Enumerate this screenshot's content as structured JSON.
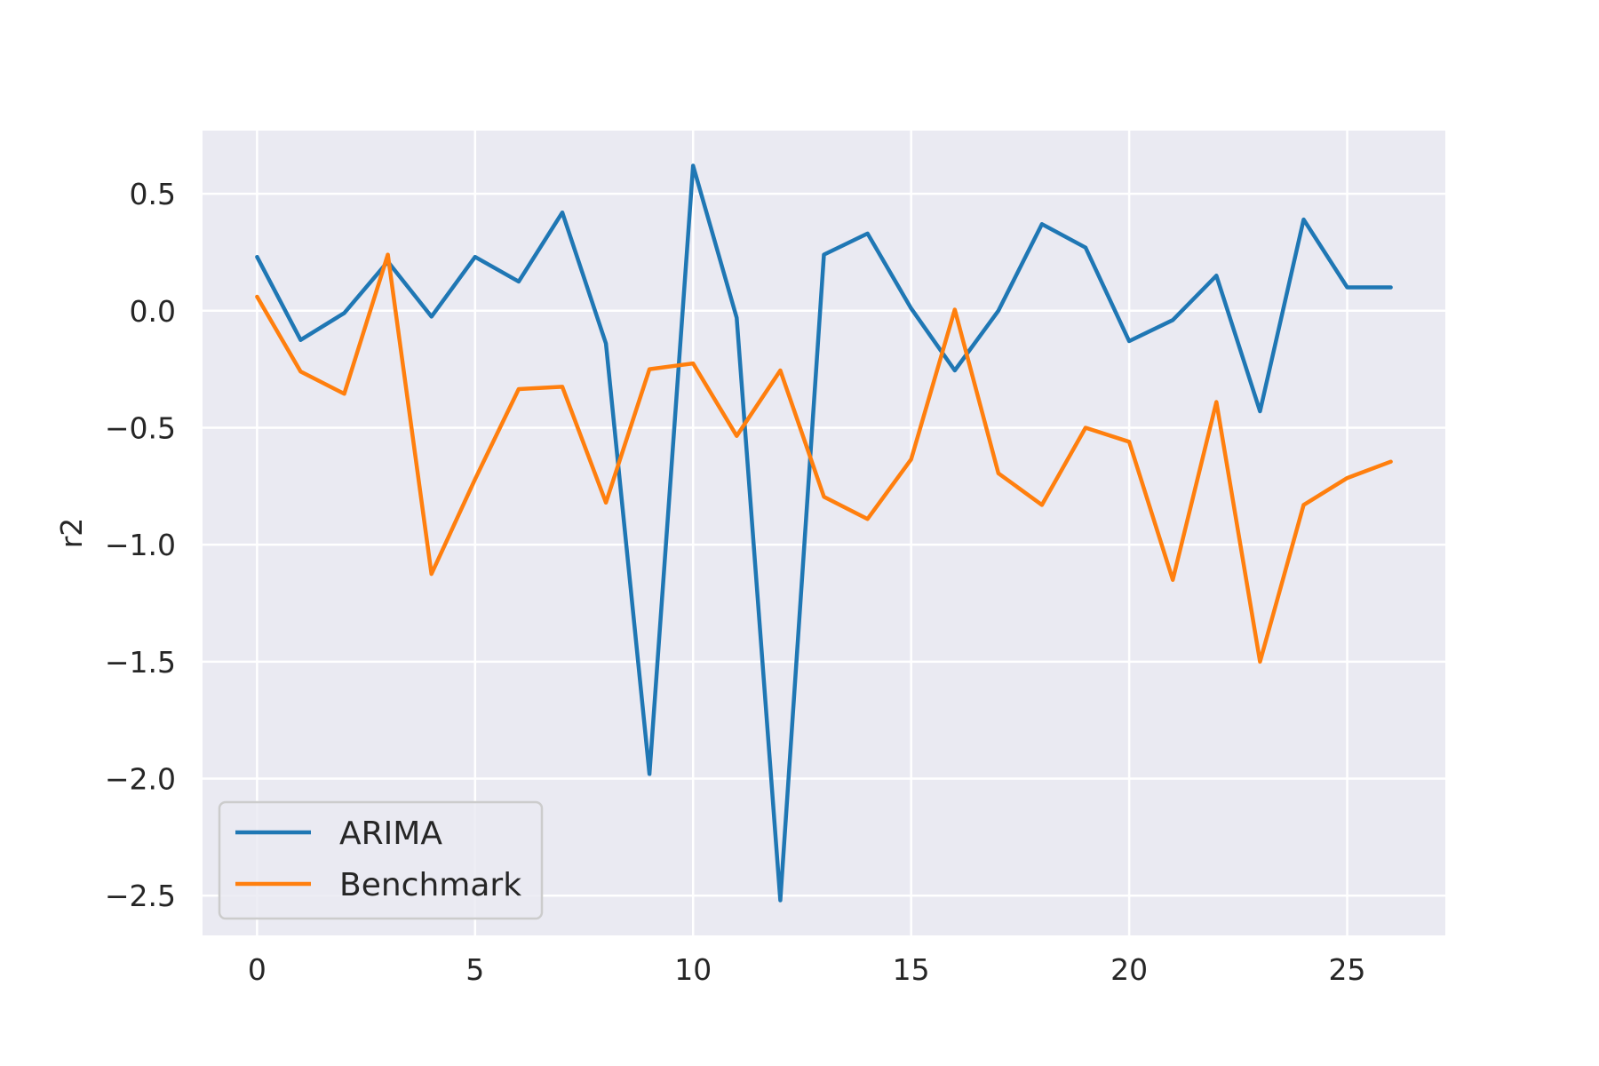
{
  "chart_data": {
    "type": "line",
    "title": "",
    "xlabel": "",
    "ylabel": "r2",
    "xlim": [
      -1.25,
      27.25
    ],
    "ylim": [
      -2.67,
      0.77
    ],
    "xticks": [
      0,
      5,
      10,
      15,
      20,
      25
    ],
    "xtick_labels": [
      "0",
      "5",
      "10",
      "15",
      "20",
      "25"
    ],
    "yticks": [
      0.5,
      0.0,
      -0.5,
      -1.0,
      -1.5,
      -2.0,
      -2.5
    ],
    "ytick_labels": [
      "0.5",
      "0.0",
      "−0.5",
      "−1.0",
      "−1.5",
      "−2.0",
      "−2.5"
    ],
    "grid": true,
    "legend_position": "lower-left",
    "x": [
      0,
      1,
      2,
      3,
      4,
      5,
      6,
      7,
      8,
      9,
      10,
      11,
      12,
      13,
      14,
      15,
      16,
      17,
      18,
      19,
      20,
      21,
      22,
      23,
      24,
      25,
      26
    ],
    "series": [
      {
        "name": "ARIMA",
        "color": "#1f77b4",
        "values": [
          0.23,
          -0.125,
          -0.01,
          0.21,
          -0.025,
          0.23,
          0.125,
          0.42,
          -0.14,
          -1.98,
          0.62,
          -0.03,
          -2.52,
          0.24,
          0.33,
          0.01,
          -0.255,
          0.0,
          0.37,
          0.27,
          -0.13,
          -0.04,
          0.15,
          -0.43,
          0.39,
          0.1,
          0.1
        ]
      },
      {
        "name": "Benchmark",
        "color": "#ff7f0e",
        "values": [
          0.06,
          -0.26,
          -0.355,
          0.24,
          -1.125,
          -0.72,
          -0.335,
          -0.325,
          -0.82,
          -0.25,
          -0.225,
          -0.535,
          -0.255,
          -0.795,
          -0.89,
          -0.635,
          0.005,
          -0.695,
          -0.83,
          -0.5,
          -0.56,
          -1.15,
          -0.39,
          -1.5,
          -0.83,
          -0.715,
          -0.645
        ]
      }
    ]
  },
  "style": {
    "plot_background": "#eaeaf2",
    "grid_color": "#ffffff"
  }
}
